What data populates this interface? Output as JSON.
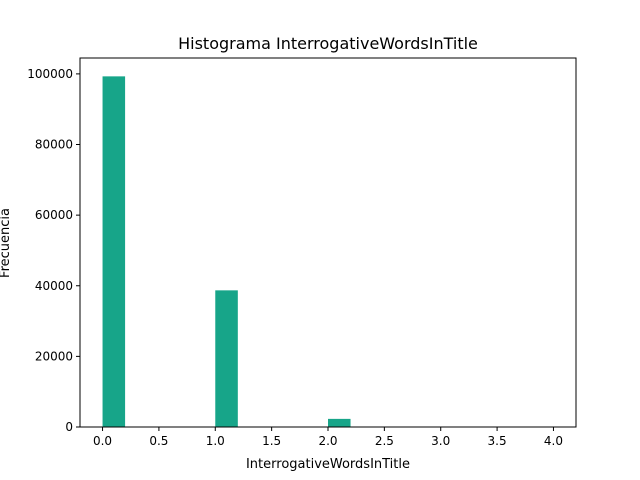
{
  "chart_data": {
    "type": "bar",
    "title": "Histograma InterrogativeWordsInTitle",
    "xlabel": "InterrogativeWordsInTitle",
    "ylabel": "Frecuencia",
    "bin_width": 0.2,
    "bins": [
      {
        "x_start": 0.0,
        "value": 99300
      },
      {
        "x_start": 1.0,
        "value": 38700
      },
      {
        "x_start": 2.0,
        "value": 2300
      },
      {
        "x_start": 3.8,
        "value": 60
      }
    ],
    "xlim": [
      -0.2,
      4.2
    ],
    "ylim": [
      0,
      104500
    ],
    "x_ticks": [
      "0.0",
      "0.5",
      "1.0",
      "1.5",
      "2.0",
      "2.5",
      "3.0",
      "3.5",
      "4.0"
    ],
    "x_tick_values": [
      0.0,
      0.5,
      1.0,
      1.5,
      2.0,
      2.5,
      3.0,
      3.5,
      4.0
    ],
    "y_ticks": [
      "0",
      "20000",
      "40000",
      "60000",
      "80000",
      "100000"
    ],
    "y_tick_values": [
      0,
      20000,
      40000,
      60000,
      80000,
      100000
    ],
    "bar_color": "#17a589",
    "grid": false,
    "legend": "none"
  }
}
